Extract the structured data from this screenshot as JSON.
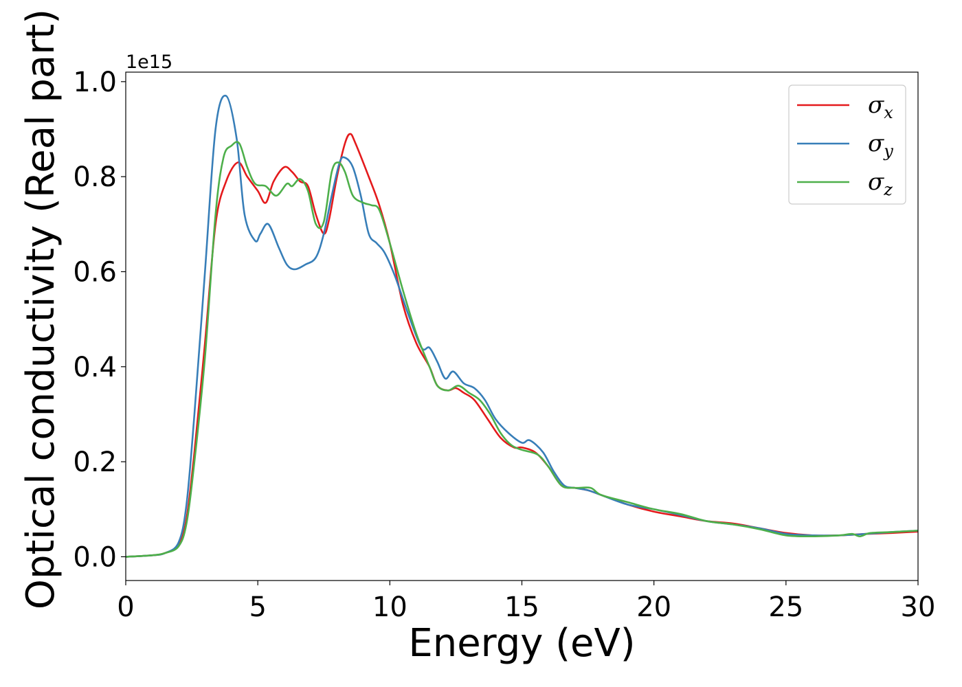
{
  "chart_data": {
    "type": "line",
    "xlabel": "Energy (eV)",
    "ylabel": "Optical conductivity (Real part)",
    "y_offset_label": "1e15",
    "xlim": [
      0,
      30
    ],
    "ylim": [
      -0.05,
      1.02
    ],
    "x_ticks": [
      0,
      5,
      10,
      15,
      20,
      25,
      30
    ],
    "x_tick_labels": [
      "0",
      "5",
      "10",
      "15",
      "20",
      "25",
      "30"
    ],
    "y_ticks": [
      0.0,
      0.2,
      0.4,
      0.6,
      0.8,
      1.0
    ],
    "y_tick_labels": [
      "0.0",
      "0.2",
      "0.4",
      "0.6",
      "0.8",
      "1.0"
    ],
    "grid": false,
    "legend_position": "top-right",
    "series": [
      {
        "name": "σx",
        "symbol": "σ",
        "subscript": "x",
        "color": "#e41a1c",
        "points": [
          [
            0,
            0
          ],
          [
            1,
            0.003
          ],
          [
            1.5,
            0.008
          ],
          [
            2,
            0.025
          ],
          [
            2.3,
            0.08
          ],
          [
            2.6,
            0.22
          ],
          [
            3,
            0.45
          ],
          [
            3.4,
            0.7
          ],
          [
            3.8,
            0.79
          ],
          [
            4.25,
            0.83
          ],
          [
            4.6,
            0.8
          ],
          [
            5,
            0.77
          ],
          [
            5.3,
            0.745
          ],
          [
            5.6,
            0.79
          ],
          [
            6,
            0.82
          ],
          [
            6.3,
            0.81
          ],
          [
            6.6,
            0.79
          ],
          [
            6.9,
            0.78
          ],
          [
            7.2,
            0.72
          ],
          [
            7.5,
            0.68
          ],
          [
            7.7,
            0.71
          ],
          [
            8,
            0.8
          ],
          [
            8.3,
            0.87
          ],
          [
            8.5,
            0.89
          ],
          [
            8.7,
            0.87
          ],
          [
            9.2,
            0.8
          ],
          [
            9.6,
            0.74
          ],
          [
            10,
            0.66
          ],
          [
            10.5,
            0.53
          ],
          [
            11,
            0.45
          ],
          [
            11.5,
            0.4
          ],
          [
            11.8,
            0.36
          ],
          [
            12.2,
            0.35
          ],
          [
            12.5,
            0.355
          ],
          [
            12.8,
            0.345
          ],
          [
            13.2,
            0.33
          ],
          [
            13.7,
            0.29
          ],
          [
            14.2,
            0.25
          ],
          [
            14.7,
            0.23
          ],
          [
            15,
            0.23
          ],
          [
            15.5,
            0.22
          ],
          [
            16,
            0.19
          ],
          [
            16.5,
            0.15
          ],
          [
            17,
            0.145
          ],
          [
            17.5,
            0.14
          ],
          [
            18,
            0.13
          ],
          [
            19,
            0.11
          ],
          [
            20,
            0.095
          ],
          [
            21,
            0.085
          ],
          [
            22,
            0.075
          ],
          [
            23,
            0.07
          ],
          [
            24,
            0.06
          ],
          [
            25,
            0.05
          ],
          [
            26,
            0.045
          ],
          [
            27,
            0.045
          ],
          [
            28,
            0.048
          ],
          [
            29,
            0.05
          ],
          [
            30,
            0.053
          ]
        ]
      },
      {
        "name": "σy",
        "symbol": "σ",
        "subscript": "y",
        "color": "#377eb8",
        "points": [
          [
            0,
            0
          ],
          [
            1,
            0.003
          ],
          [
            1.5,
            0.008
          ],
          [
            2,
            0.03
          ],
          [
            2.3,
            0.11
          ],
          [
            2.6,
            0.3
          ],
          [
            3,
            0.6
          ],
          [
            3.4,
            0.9
          ],
          [
            3.8,
            0.97
          ],
          [
            4.2,
            0.88
          ],
          [
            4.5,
            0.72
          ],
          [
            4.9,
            0.665
          ],
          [
            5.1,
            0.68
          ],
          [
            5.4,
            0.7
          ],
          [
            5.8,
            0.65
          ],
          [
            6.1,
            0.615
          ],
          [
            6.4,
            0.605
          ],
          [
            6.8,
            0.615
          ],
          [
            7.2,
            0.63
          ],
          [
            7.5,
            0.68
          ],
          [
            7.8,
            0.76
          ],
          [
            8.1,
            0.83
          ],
          [
            8.3,
            0.84
          ],
          [
            8.6,
            0.82
          ],
          [
            8.9,
            0.76
          ],
          [
            9.2,
            0.68
          ],
          [
            9.5,
            0.66
          ],
          [
            9.8,
            0.64
          ],
          [
            10.2,
            0.59
          ],
          [
            10.7,
            0.51
          ],
          [
            11.2,
            0.44
          ],
          [
            11.5,
            0.44
          ],
          [
            11.8,
            0.41
          ],
          [
            12.1,
            0.375
          ],
          [
            12.4,
            0.39
          ],
          [
            12.8,
            0.365
          ],
          [
            13.2,
            0.355
          ],
          [
            13.6,
            0.33
          ],
          [
            14,
            0.29
          ],
          [
            14.5,
            0.26
          ],
          [
            15,
            0.24
          ],
          [
            15.3,
            0.245
          ],
          [
            15.8,
            0.22
          ],
          [
            16.2,
            0.18
          ],
          [
            16.6,
            0.15
          ],
          [
            17,
            0.145
          ],
          [
            17.5,
            0.14
          ],
          [
            18,
            0.13
          ],
          [
            19,
            0.11
          ],
          [
            20,
            0.1
          ],
          [
            21,
            0.088
          ],
          [
            22,
            0.075
          ],
          [
            23,
            0.068
          ],
          [
            24,
            0.06
          ],
          [
            25,
            0.048
          ],
          [
            26,
            0.045
          ],
          [
            27,
            0.045
          ],
          [
            28,
            0.048
          ],
          [
            29,
            0.052
          ],
          [
            30,
            0.055
          ]
        ]
      },
      {
        "name": "σz",
        "symbol": "σ",
        "subscript": "z",
        "color": "#4daf4a",
        "points": [
          [
            0,
            0
          ],
          [
            1,
            0.003
          ],
          [
            1.5,
            0.008
          ],
          [
            2,
            0.022
          ],
          [
            2.3,
            0.07
          ],
          [
            2.6,
            0.2
          ],
          [
            3,
            0.42
          ],
          [
            3.4,
            0.72
          ],
          [
            3.7,
            0.84
          ],
          [
            4,
            0.865
          ],
          [
            4.3,
            0.87
          ],
          [
            4.6,
            0.82
          ],
          [
            4.9,
            0.785
          ],
          [
            5.3,
            0.78
          ],
          [
            5.7,
            0.76
          ],
          [
            6.1,
            0.785
          ],
          [
            6.3,
            0.78
          ],
          [
            6.6,
            0.795
          ],
          [
            6.9,
            0.77
          ],
          [
            7.2,
            0.7
          ],
          [
            7.5,
            0.705
          ],
          [
            7.8,
            0.81
          ],
          [
            8.05,
            0.83
          ],
          [
            8.3,
            0.81
          ],
          [
            8.6,
            0.76
          ],
          [
            9,
            0.745
          ],
          [
            9.3,
            0.74
          ],
          [
            9.6,
            0.73
          ],
          [
            10,
            0.66
          ],
          [
            10.5,
            0.56
          ],
          [
            11,
            0.47
          ],
          [
            11.5,
            0.4
          ],
          [
            11.8,
            0.36
          ],
          [
            12.2,
            0.35
          ],
          [
            12.6,
            0.36
          ],
          [
            13,
            0.345
          ],
          [
            13.4,
            0.33
          ],
          [
            13.8,
            0.3
          ],
          [
            14.2,
            0.26
          ],
          [
            14.6,
            0.235
          ],
          [
            15,
            0.225
          ],
          [
            15.6,
            0.215
          ],
          [
            16,
            0.19
          ],
          [
            16.5,
            0.15
          ],
          [
            17,
            0.145
          ],
          [
            17.6,
            0.145
          ],
          [
            18,
            0.13
          ],
          [
            19,
            0.115
          ],
          [
            20,
            0.1
          ],
          [
            21,
            0.09
          ],
          [
            22,
            0.075
          ],
          [
            23,
            0.068
          ],
          [
            24,
            0.058
          ],
          [
            25,
            0.045
          ],
          [
            26,
            0.043
          ],
          [
            27,
            0.045
          ],
          [
            27.5,
            0.048
          ],
          [
            27.8,
            0.043
          ],
          [
            28.2,
            0.05
          ],
          [
            29,
            0.052
          ],
          [
            30,
            0.055
          ]
        ]
      }
    ]
  }
}
